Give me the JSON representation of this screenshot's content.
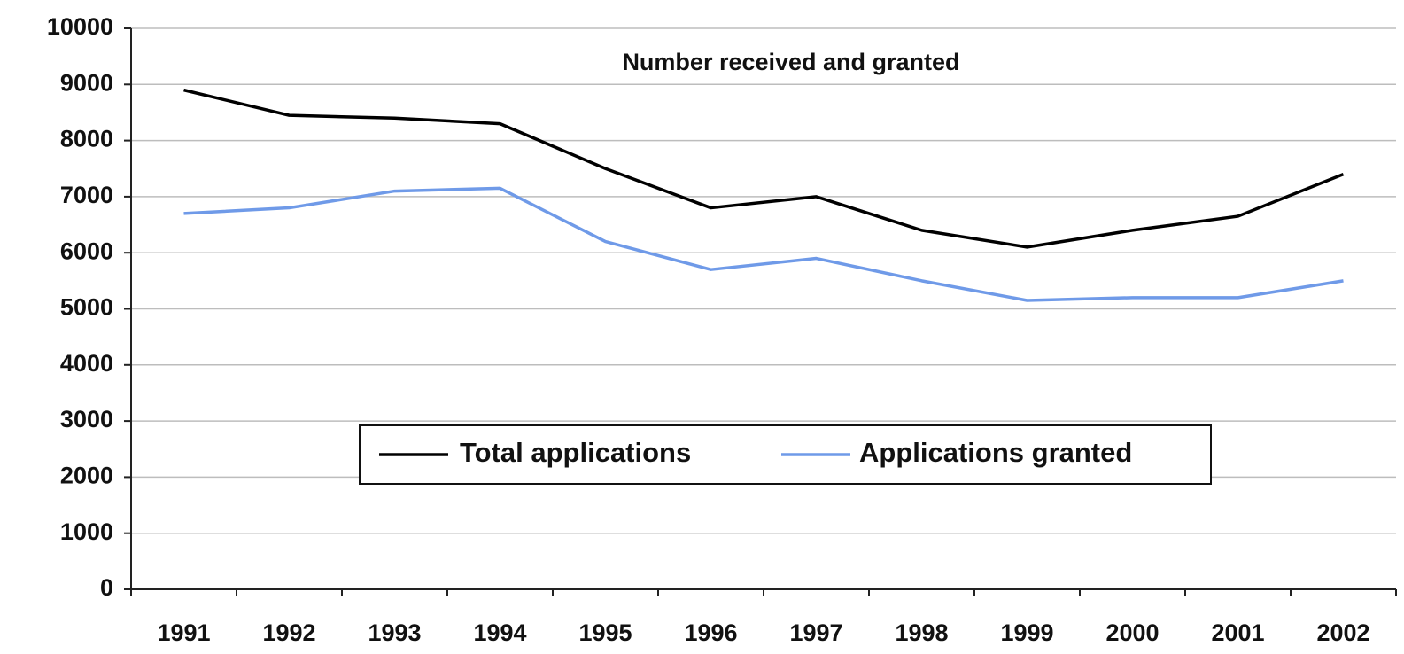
{
  "chart_data": {
    "type": "line",
    "title": "Number received and granted",
    "categories": [
      "1991",
      "1992",
      "1993",
      "1994",
      "1995",
      "1996",
      "1997",
      "1998",
      "1999",
      "2000",
      "2001",
      "2002"
    ],
    "series": [
      {
        "name": "Total applications",
        "color": "#000000",
        "values": [
          8900,
          8450,
          8400,
          8300,
          7500,
          6800,
          7000,
          6400,
          6100,
          6400,
          6650,
          7400
        ]
      },
      {
        "name": "Applications granted",
        "color": "#6f9ae8",
        "values": [
          6700,
          6800,
          7100,
          7150,
          6200,
          5700,
          5900,
          5500,
          5150,
          5200,
          5200,
          5500
        ]
      }
    ],
    "ylim": [
      0,
      10000
    ],
    "yticks": [
      0,
      1000,
      2000,
      3000,
      4000,
      5000,
      6000,
      7000,
      8000,
      9000,
      10000
    ],
    "grid": true,
    "legend_position": "center"
  }
}
